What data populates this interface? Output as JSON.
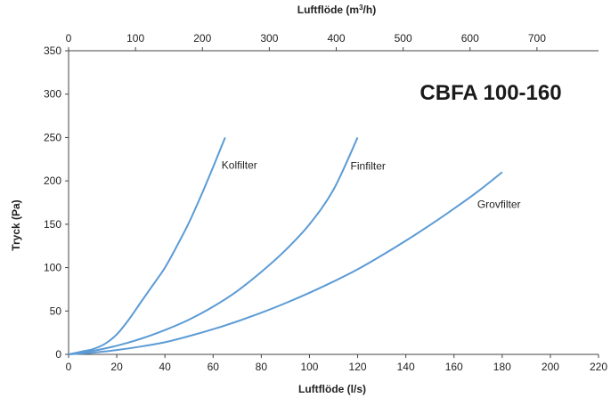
{
  "chart_data": {
    "type": "line",
    "title": "",
    "xlabel": "Luftflöde (l/s)",
    "ylabel": "Tryck (Pa)",
    "x2label_prefix": "Luftflöde (m",
    "x2label_sup": "3",
    "x2label_suffix": "/h)",
    "xlim": [
      0,
      220
    ],
    "ylim": [
      0,
      350
    ],
    "x2lim": [
      0,
      792
    ],
    "x_ticks": [
      0,
      20,
      40,
      60,
      80,
      100,
      120,
      140,
      160,
      180,
      200,
      220
    ],
    "y_ticks": [
      0,
      50,
      100,
      150,
      200,
      250,
      300,
      350
    ],
    "x2_ticks": [
      0,
      100,
      200,
      300,
      400,
      500,
      600,
      700
    ],
    "grid": false,
    "legend": "none",
    "line_color": "#5b9bd5",
    "annotation": "CBFA 100-160",
    "series": [
      {
        "name": "Kolfilter",
        "x": [
          0,
          5,
          10,
          15,
          20,
          25,
          30,
          35,
          40,
          45,
          50,
          55,
          60,
          65
        ],
        "y": [
          0,
          3,
          6,
          12,
          23,
          40,
          60,
          80,
          100,
          125,
          152,
          183,
          216,
          250
        ]
      },
      {
        "name": "Finfilter",
        "x": [
          0,
          10,
          20,
          30,
          40,
          50,
          60,
          70,
          80,
          90,
          100,
          110,
          120
        ],
        "y": [
          0,
          4,
          10,
          18,
          28,
          40,
          55,
          73,
          95,
          120,
          150,
          190,
          250
        ]
      },
      {
        "name": "Grovfilter",
        "x": [
          0,
          10,
          20,
          30,
          40,
          50,
          60,
          70,
          80,
          90,
          100,
          110,
          120,
          130,
          140,
          150,
          160,
          170,
          180
        ],
        "y": [
          0,
          2,
          5,
          9,
          14,
          21,
          29,
          38,
          48,
          59,
          71,
          84,
          98,
          114,
          131,
          149,
          168,
          188,
          210
        ]
      }
    ]
  }
}
